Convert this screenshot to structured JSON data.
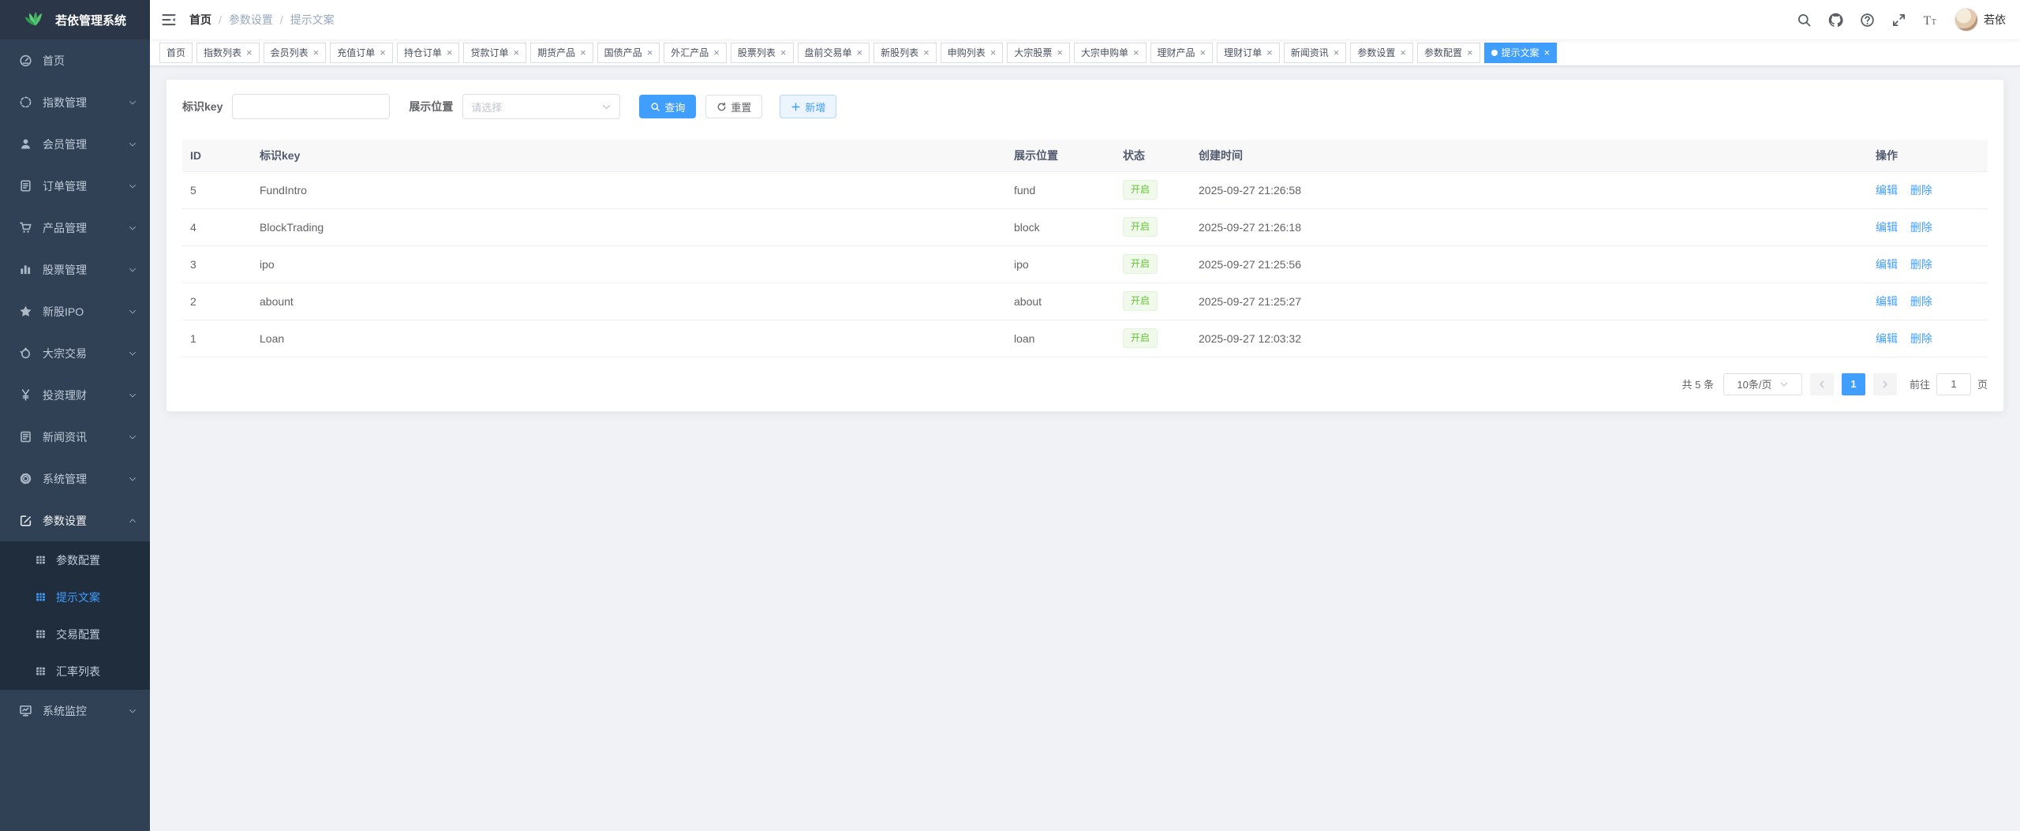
{
  "app": {
    "title": "若依管理系统"
  },
  "colors": {
    "primary": "#409eff",
    "success": "#67c23a",
    "success_bg": "#f0f9eb",
    "sidebar_bg": "#304156",
    "submenu_bg": "#1f2d3d",
    "tab_active_bg": "#409eff"
  },
  "sidebar": {
    "logo_text": "若依管理系统",
    "items": [
      {
        "label": "首页",
        "icon": "dashboard-icon",
        "expandable": false
      },
      {
        "label": "指数管理",
        "icon": "index-icon",
        "expandable": true
      },
      {
        "label": "会员管理",
        "icon": "member-icon",
        "expandable": true
      },
      {
        "label": "订单管理",
        "icon": "order-icon",
        "expandable": true
      },
      {
        "label": "产品管理",
        "icon": "product-cart-icon",
        "expandable": true
      },
      {
        "label": "股票管理",
        "icon": "stock-chart-icon",
        "expandable": true
      },
      {
        "label": "新股IPO",
        "icon": "ipo-star-icon",
        "expandable": true
      },
      {
        "label": "大宗交易",
        "icon": "bulk-trade-icon",
        "expandable": true
      },
      {
        "label": "投资理财",
        "icon": "invest-yen-icon",
        "expandable": true
      },
      {
        "label": "新闻资讯",
        "icon": "news-icon",
        "expandable": true
      },
      {
        "label": "系统管理",
        "icon": "gear-icon",
        "expandable": true
      },
      {
        "label": "参数设置",
        "icon": "param-edit-icon",
        "expandable": true,
        "expanded": true,
        "children": [
          {
            "label": "参数配置",
            "icon": "grid-icon",
            "active": false
          },
          {
            "label": "提示文案",
            "icon": "grid-icon",
            "active": true
          },
          {
            "label": "交易配置",
            "icon": "grid-icon",
            "active": false
          },
          {
            "label": "汇率列表",
            "icon": "grid-icon",
            "active": false
          }
        ]
      },
      {
        "label": "系统监控",
        "icon": "monitor-icon",
        "expandable": true
      }
    ]
  },
  "navbar": {
    "breadcrumb": [
      "首页",
      "参数设置",
      "提示文案"
    ],
    "breadcrumb_separator": "/",
    "icons": [
      "search-icon",
      "github-icon",
      "help-icon",
      "fullscreen-icon",
      "font-size-icon"
    ],
    "user_name": "若依"
  },
  "tabs": {
    "close_glyph": "×",
    "items": [
      {
        "label": "首页",
        "closable": false,
        "active": false
      },
      {
        "label": "指数列表",
        "closable": true,
        "active": false
      },
      {
        "label": "会员列表",
        "closable": true,
        "active": false
      },
      {
        "label": "充值订单",
        "closable": true,
        "active": false
      },
      {
        "label": "持仓订单",
        "closable": true,
        "active": false
      },
      {
        "label": "贷款订单",
        "closable": true,
        "active": false
      },
      {
        "label": "期货产品",
        "closable": true,
        "active": false
      },
      {
        "label": "国债产品",
        "closable": true,
        "active": false
      },
      {
        "label": "外汇产品",
        "closable": true,
        "active": false
      },
      {
        "label": "股票列表",
        "closable": true,
        "active": false
      },
      {
        "label": "盘前交易单",
        "closable": true,
        "active": false
      },
      {
        "label": "新股列表",
        "closable": true,
        "active": false
      },
      {
        "label": "申购列表",
        "closable": true,
        "active": false
      },
      {
        "label": "大宗股票",
        "closable": true,
        "active": false
      },
      {
        "label": "大宗申购单",
        "closable": true,
        "active": false
      },
      {
        "label": "理财产品",
        "closable": true,
        "active": false
      },
      {
        "label": "理财订单",
        "closable": true,
        "active": false
      },
      {
        "label": "新闻资讯",
        "closable": true,
        "active": false
      },
      {
        "label": "参数设置",
        "closable": true,
        "active": false
      },
      {
        "label": "参数配置",
        "closable": true,
        "active": false
      },
      {
        "label": "提示文案",
        "closable": true,
        "active": true
      }
    ]
  },
  "filter": {
    "key_label": "标识key",
    "key_value": "",
    "position_label": "展示位置",
    "position_placeholder": "请选择",
    "search_label": "查询",
    "reset_label": "重置",
    "add_label": "新增"
  },
  "table": {
    "columns": [
      "ID",
      "标识key",
      "展示位置",
      "状态",
      "创建时间",
      "操作"
    ],
    "edit_label": "编辑",
    "delete_label": "删除",
    "status_on_label": "开启",
    "rows": [
      {
        "id": "5",
        "key": "FundIntro",
        "position": "fund",
        "status": "开启",
        "created": "2025-09-27 21:26:58"
      },
      {
        "id": "4",
        "key": "BlockTrading",
        "position": "block",
        "status": "开启",
        "created": "2025-09-27 21:26:18"
      },
      {
        "id": "3",
        "key": "ipo",
        "position": "ipo",
        "status": "开启",
        "created": "2025-09-27 21:25:56"
      },
      {
        "id": "2",
        "key": "abount",
        "position": "about",
        "status": "开启",
        "created": "2025-09-27 21:25:27"
      },
      {
        "id": "1",
        "key": "Loan",
        "position": "loan",
        "status": "开启",
        "created": "2025-09-27 12:03:32"
      }
    ]
  },
  "pagination": {
    "total_text": "共 5 条",
    "page_size_value": "10条/页",
    "current_page": "1",
    "goto_label": "前往",
    "goto_value": "1",
    "page_suffix": "页"
  }
}
